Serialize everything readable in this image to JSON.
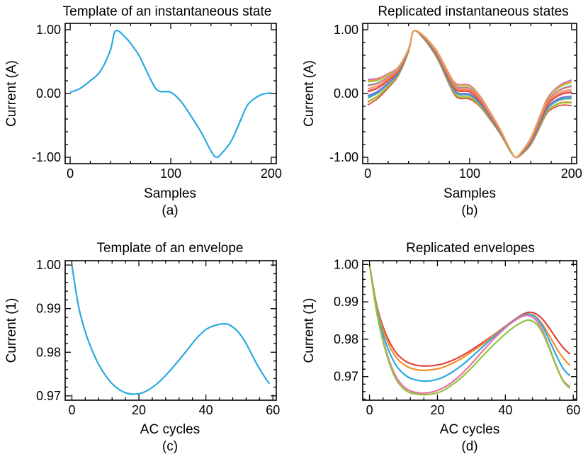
{
  "chart_data": [
    {
      "type": "line",
      "panel": "a",
      "title": "Template of an instantaneous state",
      "xlabel": "Samples",
      "ylabel": "Current (A)",
      "caption": "(a)",
      "xlim": [
        -5,
        205
      ],
      "ylim": [
        -1.1,
        1.1
      ],
      "xticks": [
        0,
        100,
        200
      ],
      "xtick_labels": [
        "0",
        "100",
        "200"
      ],
      "yticks": [
        1.0,
        0.0,
        -1.0
      ],
      "ytick_labels": [
        "1.00",
        "0.00",
        "-1.00"
      ],
      "color": "#29aae2",
      "series": [
        {
          "name": "template",
          "x": [
            0,
            10,
            20,
            30,
            40,
            45,
            55,
            65,
            70,
            80,
            85,
            90,
            100,
            110,
            120,
            130,
            140,
            145,
            150,
            160,
            170,
            175,
            180,
            190,
            200
          ],
          "y": [
            0.02,
            0.08,
            0.2,
            0.35,
            0.68,
            0.98,
            0.88,
            0.68,
            0.55,
            0.22,
            0.08,
            0.03,
            0.02,
            -0.12,
            -0.35,
            -0.6,
            -0.9,
            -1.0,
            -0.95,
            -0.75,
            -0.4,
            -0.22,
            -0.12,
            -0.02,
            0.01
          ]
        }
      ]
    },
    {
      "type": "line",
      "panel": "b",
      "title": "Replicated instantaneous states",
      "xlabel": "Samples",
      "ylabel": "Current (A)",
      "caption": "(b)",
      "xlim": [
        -5,
        205
      ],
      "ylim": [
        -1.1,
        1.1
      ],
      "xticks": [
        0,
        100,
        200
      ],
      "xtick_labels": [
        "0",
        "100",
        "200"
      ],
      "yticks": [
        1.0,
        0.0,
        -1.0
      ],
      "ytick_labels": [
        "1.00",
        "0.00",
        "-1.00"
      ],
      "replicas": 18,
      "replica_offset_range": [
        -0.2,
        0.2
      ],
      "colors": [
        "#e0443c",
        "#f28e2b",
        "#e8c32f",
        "#8cc63f",
        "#59a14f",
        "#2bb3a3",
        "#29aae2",
        "#7b6fd6",
        "#c65bd6",
        "#ef6fa3",
        "#e0443c",
        "#f28e2b",
        "#59a14f",
        "#29aae2",
        "#ef6fa3",
        "#8cc63f",
        "#c65bd6",
        "#f2a33c"
      ],
      "series": [
        {
          "name": "base",
          "x": [
            0,
            10,
            20,
            30,
            40,
            45,
            55,
            65,
            70,
            80,
            85,
            90,
            100,
            110,
            120,
            130,
            140,
            145,
            150,
            160,
            170,
            175,
            180,
            190,
            200
          ],
          "y": [
            0.02,
            0.08,
            0.2,
            0.35,
            0.68,
            0.98,
            0.88,
            0.68,
            0.55,
            0.22,
            0.08,
            0.03,
            0.02,
            -0.12,
            -0.35,
            -0.6,
            -0.9,
            -1.0,
            -0.95,
            -0.75,
            -0.4,
            -0.22,
            -0.12,
            -0.02,
            0.01
          ]
        }
      ]
    },
    {
      "type": "line",
      "panel": "c",
      "title": "Template of an envelope",
      "xlabel": "AC cycles",
      "ylabel": "Current (1)",
      "caption": "(c)",
      "xlim": [
        -2,
        61
      ],
      "ylim": [
        0.969,
        1.001
      ],
      "xticks": [
        0,
        20,
        40,
        60
      ],
      "xtick_labels": [
        "0",
        "20",
        "40",
        "60"
      ],
      "yticks": [
        1.0,
        0.99,
        0.98,
        0.97
      ],
      "ytick_labels": [
        "1.00",
        "0.99",
        "0.98",
        "0.97"
      ],
      "color": "#29aae2",
      "series": [
        {
          "name": "template",
          "x": [
            0,
            2,
            4,
            6,
            8,
            10,
            12,
            14,
            16,
            18,
            20,
            22,
            25,
            28,
            31,
            34,
            37,
            40,
            43,
            46,
            48,
            50,
            52,
            54,
            56,
            58,
            59
          ],
          "y": [
            1.0,
            0.9905,
            0.9847,
            0.9805,
            0.9772,
            0.9747,
            0.9728,
            0.9715,
            0.9707,
            0.9704,
            0.9705,
            0.971,
            0.9725,
            0.9747,
            0.9773,
            0.9801,
            0.983,
            0.9852,
            0.9862,
            0.9865,
            0.9858,
            0.9843,
            0.982,
            0.979,
            0.9762,
            0.9738,
            0.9728
          ]
        }
      ]
    },
    {
      "type": "line",
      "panel": "d",
      "title": "Replicated envelopes",
      "xlabel": "AC cycles",
      "ylabel": "Current (1)",
      "caption": "(d)",
      "xlim": [
        -2,
        61
      ],
      "ylim": [
        0.9637,
        1.001
      ],
      "xticks": [
        0,
        20,
        40,
        60
      ],
      "xtick_labels": [
        "0",
        "20",
        "40",
        "60"
      ],
      "yticks": [
        1.0,
        0.99,
        0.98,
        0.97
      ],
      "ytick_labels": [
        "1.00",
        "0.99",
        "0.98",
        "0.97"
      ],
      "series": [
        {
          "name": "red",
          "color": "#e0443c",
          "x": [
            0,
            2,
            4,
            6,
            8,
            10,
            12,
            15,
            18,
            21,
            24,
            27,
            30,
            33,
            36,
            39,
            42,
            45,
            47,
            49,
            51,
            53,
            55,
            57,
            59
          ],
          "y": [
            1.0,
            0.9896,
            0.9833,
            0.9791,
            0.9762,
            0.9745,
            0.9735,
            0.9729,
            0.9729,
            0.9733,
            0.9742,
            0.9755,
            0.9771,
            0.9789,
            0.9808,
            0.9828,
            0.9848,
            0.9866,
            0.9872,
            0.9868,
            0.9853,
            0.9829,
            0.9802,
            0.9778,
            0.976
          ]
        },
        {
          "name": "orange",
          "color": "#f28e2b",
          "x": [
            0,
            2,
            4,
            6,
            8,
            10,
            12,
            15,
            18,
            21,
            24,
            27,
            30,
            33,
            36,
            39,
            42,
            45,
            47,
            49,
            51,
            53,
            55,
            57,
            59
          ],
          "y": [
            1.0,
            0.9892,
            0.9825,
            0.978,
            0.975,
            0.9733,
            0.9723,
            0.9717,
            0.9718,
            0.9723,
            0.9734,
            0.9748,
            0.9766,
            0.9785,
            0.9806,
            0.9827,
            0.9847,
            0.9863,
            0.9867,
            0.986,
            0.9839,
            0.9809,
            0.9777,
            0.975,
            0.973
          ]
        },
        {
          "name": "blue",
          "color": "#29aae2",
          "x": [
            0,
            2,
            4,
            6,
            8,
            10,
            12,
            15,
            18,
            21,
            24,
            27,
            30,
            33,
            36,
            39,
            42,
            45,
            47,
            49,
            51,
            53,
            55,
            57,
            59
          ],
          "y": [
            1.0,
            0.9885,
            0.9812,
            0.9762,
            0.9728,
            0.9708,
            0.9696,
            0.9689,
            0.9689,
            0.9696,
            0.971,
            0.9729,
            0.9752,
            0.9777,
            0.9802,
            0.9825,
            0.9847,
            0.9863,
            0.9867,
            0.9858,
            0.9833,
            0.9796,
            0.9757,
            0.9722,
            0.9702
          ]
        },
        {
          "name": "pink",
          "color": "#ef6fa3",
          "x": [
            0,
            2,
            4,
            6,
            8,
            10,
            12,
            15,
            18,
            21,
            24,
            27,
            30,
            33,
            36,
            39,
            42,
            45,
            47,
            49,
            51,
            53,
            55,
            57,
            59
          ],
          "y": [
            1.0,
            0.9879,
            0.9797,
            0.9738,
            0.9697,
            0.9674,
            0.9662,
            0.9656,
            0.9658,
            0.9667,
            0.9683,
            0.9706,
            0.9734,
            0.9765,
            0.9795,
            0.9822,
            0.9845,
            0.9861,
            0.9863,
            0.9851,
            0.9822,
            0.9777,
            0.9729,
            0.969,
            0.9673
          ]
        },
        {
          "name": "green",
          "color": "#8cc63f",
          "x": [
            0,
            2,
            4,
            6,
            8,
            10,
            12,
            15,
            18,
            21,
            24,
            27,
            30,
            33,
            36,
            39,
            42,
            45,
            47,
            49,
            51,
            53,
            55,
            57,
            59
          ],
          "y": [
            1.0,
            0.9878,
            0.9793,
            0.9732,
            0.969,
            0.9668,
            0.9657,
            0.9652,
            0.9653,
            0.966,
            0.9676,
            0.9697,
            0.9723,
            0.9752,
            0.978,
            0.9806,
            0.9829,
            0.9846,
            0.9851,
            0.9842,
            0.9816,
            0.9774,
            0.9727,
            0.9688,
            0.9669
          ]
        }
      ]
    }
  ]
}
